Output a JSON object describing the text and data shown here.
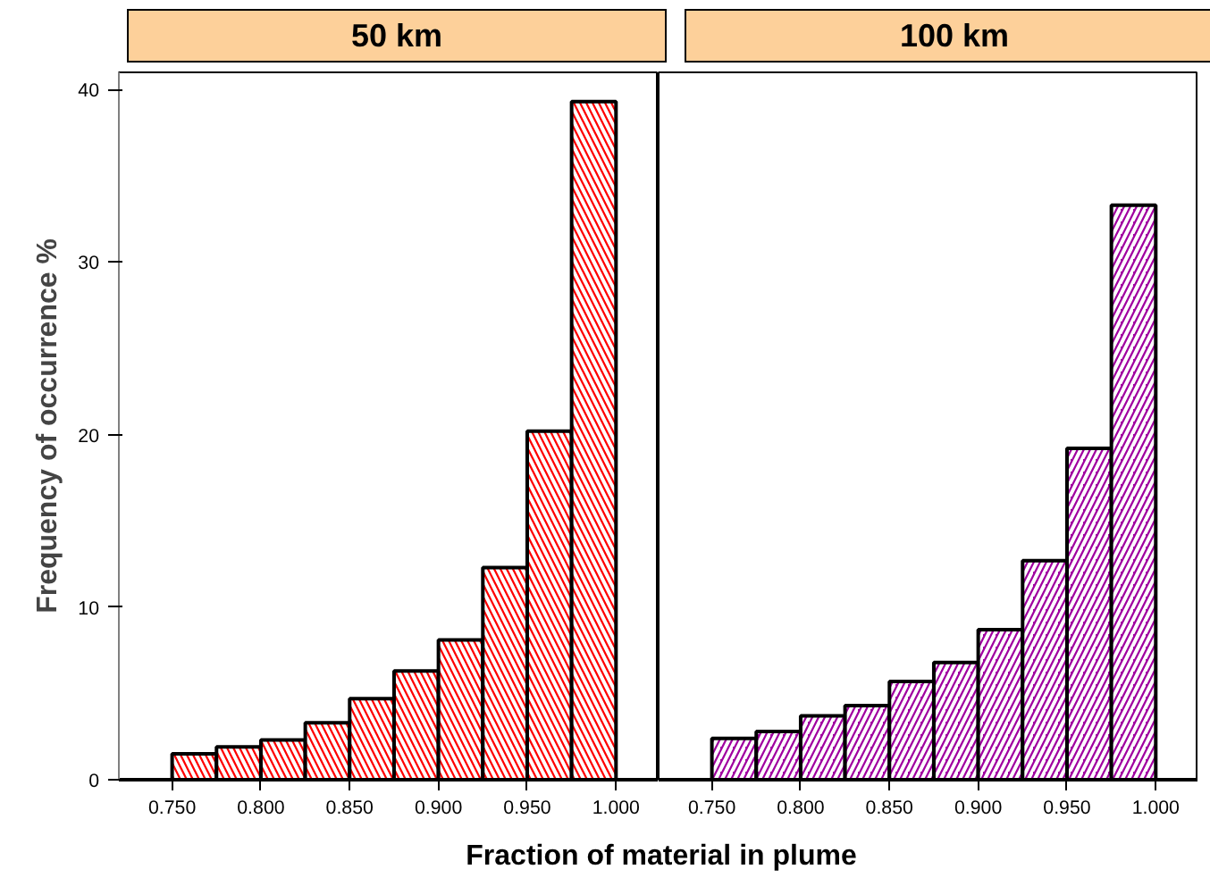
{
  "chart_data": [
    {
      "type": "histogram",
      "title": "50 km",
      "ylabel": "Frequency of occurrence %",
      "xlabel": "Fraction of material in plume",
      "bins": [
        0.75,
        0.775,
        0.8,
        0.825,
        0.85,
        0.875,
        0.9,
        0.925,
        0.95,
        0.975,
        1.0
      ],
      "values": [
        1.5,
        1.9,
        2.3,
        3.3,
        4.7,
        6.3,
        8.1,
        12.3,
        20.2,
        39.3
      ],
      "color": "#ff0000",
      "xlim": [
        0.72,
        1.024
      ],
      "xticks": [
        {
          "value": 0.75,
          "label": "0.750"
        },
        {
          "value": 0.8,
          "label": "0.800"
        },
        {
          "value": 0.85,
          "label": "0.850"
        },
        {
          "value": 0.9,
          "label": "0.900"
        },
        {
          "value": 0.95,
          "label": "0.950"
        },
        {
          "value": 1.0,
          "label": "1.000"
        }
      ],
      "ylim": [
        0,
        41
      ],
      "yticks": [
        0,
        10,
        20,
        30,
        40
      ],
      "grid": false
    },
    {
      "type": "histogram",
      "title": "100 km",
      "bins": [
        0.75,
        0.775,
        0.8,
        0.825,
        0.85,
        0.875,
        0.9,
        0.925,
        0.95,
        0.975,
        1.0
      ],
      "values": [
        2.4,
        2.8,
        3.7,
        4.3,
        5.7,
        6.8,
        8.7,
        12.7,
        19.2,
        33.3
      ],
      "color": "#a000a0",
      "xlim": [
        0.72,
        1.024
      ],
      "xticks": [
        {
          "value": 0.75,
          "label": "0.750"
        },
        {
          "value": 0.8,
          "label": "0.800"
        },
        {
          "value": 0.85,
          "label": "0.850"
        },
        {
          "value": 0.9,
          "label": "0.900"
        },
        {
          "value": 0.95,
          "label": "0.950"
        },
        {
          "value": 1.0,
          "label": "1.000"
        }
      ],
      "ylim": [
        0,
        41
      ],
      "yticks": [
        0,
        10,
        20,
        30,
        40
      ],
      "tick_labels": "x",
      "grid": false
    }
  ]
}
